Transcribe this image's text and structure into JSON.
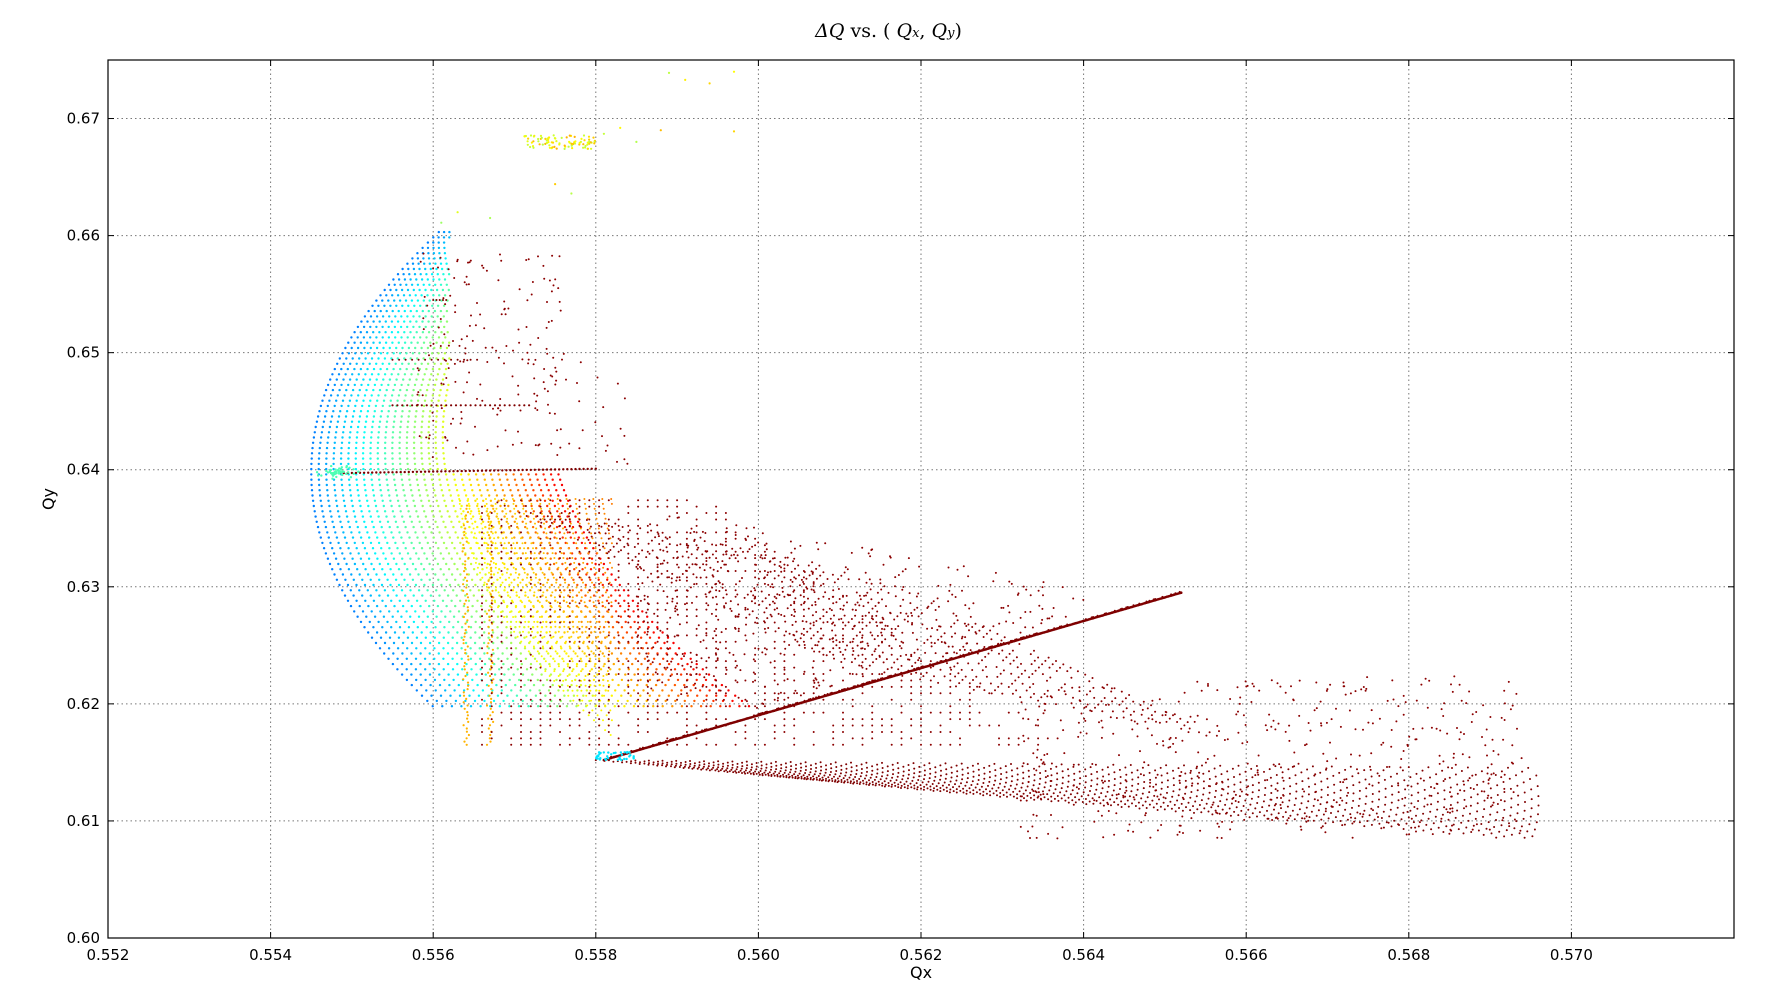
{
  "chart_data": {
    "type": "scatter",
    "title": "ΔQ vs. (Qx,Qy)",
    "xlabel": "Qx",
    "ylabel": "Qy",
    "xlim": [
      0.552,
      0.572
    ],
    "ylim": [
      0.6,
      0.675
    ],
    "x_ticks": [
      "0.552",
      "0.554",
      "0.556",
      "0.558",
      "0.560",
      "0.562",
      "0.564",
      "0.566",
      "0.568",
      "0.570"
    ],
    "y_ticks": [
      "0.60",
      "0.61",
      "0.62",
      "0.63",
      "0.64",
      "0.65",
      "0.66",
      "0.67"
    ],
    "grid": true,
    "grid_style": "dotted",
    "colormap": "jet",
    "colors": {
      "high": "#7f0000",
      "upper": "#ff8c00",
      "mid": "#ffd400",
      "low_mid": "#adff2f",
      "low": "#00e5d0"
    },
    "regions": [
      {
        "name": "core boundary arc",
        "qx": [
          0.5545,
          0.5561
        ],
        "qy": [
          0.6198,
          0.6605
        ],
        "color": "low"
      },
      {
        "name": "core fill",
        "qx": [
          0.5548,
          0.5582
        ],
        "qy": [
          0.615,
          0.6605
        ],
        "color": "mid"
      },
      {
        "name": "diagonal resonance line",
        "qx": [
          0.558,
          0.5652
        ],
        "qy": [
          0.615,
          0.6295
        ],
        "color": "high"
      },
      {
        "name": "lower fan tails",
        "qx": [
          0.558,
          0.5695
        ],
        "qy": [
          0.6055,
          0.616
        ],
        "color": "high"
      },
      {
        "name": "horizontal resonance line",
        "qx": [
          0.5545,
          0.558
        ],
        "qy": [
          0.6395,
          0.6405
        ],
        "color": "high"
      },
      {
        "name": "upper scattered cluster",
        "qx": [
          0.557,
          0.5597
        ],
        "qy": [
          0.6675,
          0.674
        ],
        "color": "low_mid"
      }
    ]
  }
}
